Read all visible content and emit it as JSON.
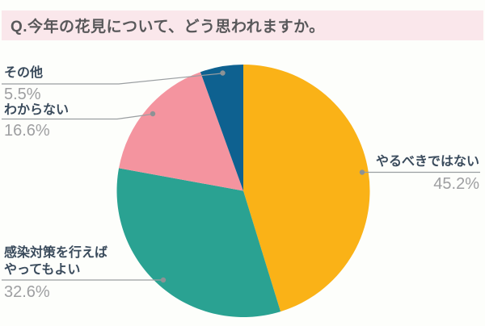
{
  "title": "Q.今年の花見について、どう思われますか。",
  "chart_data": {
    "type": "pie",
    "title": "Q.今年の花見について、どう思われますか。",
    "unit": "%",
    "start_angle_deg": 0,
    "direction": "clockwise",
    "legend_position": "none",
    "slices": [
      {
        "id": "should-not-do",
        "label": "やるべきではない",
        "display_label": "やるべきではない",
        "value": 45.2,
        "pct_label": "45.2%",
        "color": "#FAB217"
      },
      {
        "id": "ok-with-measures",
        "label": "感染対策を行えばやってもよい",
        "display_label": "感染対策を行えば\nやってもよい",
        "value": 32.6,
        "pct_label": "32.6%",
        "color": "#2AA292"
      },
      {
        "id": "dont-know",
        "label": "わからない",
        "display_label": "わからない",
        "value": 16.6,
        "pct_label": "16.6%",
        "color": "#F4949F"
      },
      {
        "id": "other",
        "label": "その他",
        "display_label": "その他",
        "value": 5.5,
        "pct_label": "5.5%",
        "color": "#0E6190"
      }
    ],
    "style": {
      "banner_bg": "#FAE7EB",
      "title_color": "#58585A",
      "label_color": "#3A4B5C",
      "pct_color": "#9E9FA1",
      "leader_line_color": "#9A9EA1",
      "leader_dot_color": "#8D9295",
      "background": "#FDFEFB"
    }
  }
}
